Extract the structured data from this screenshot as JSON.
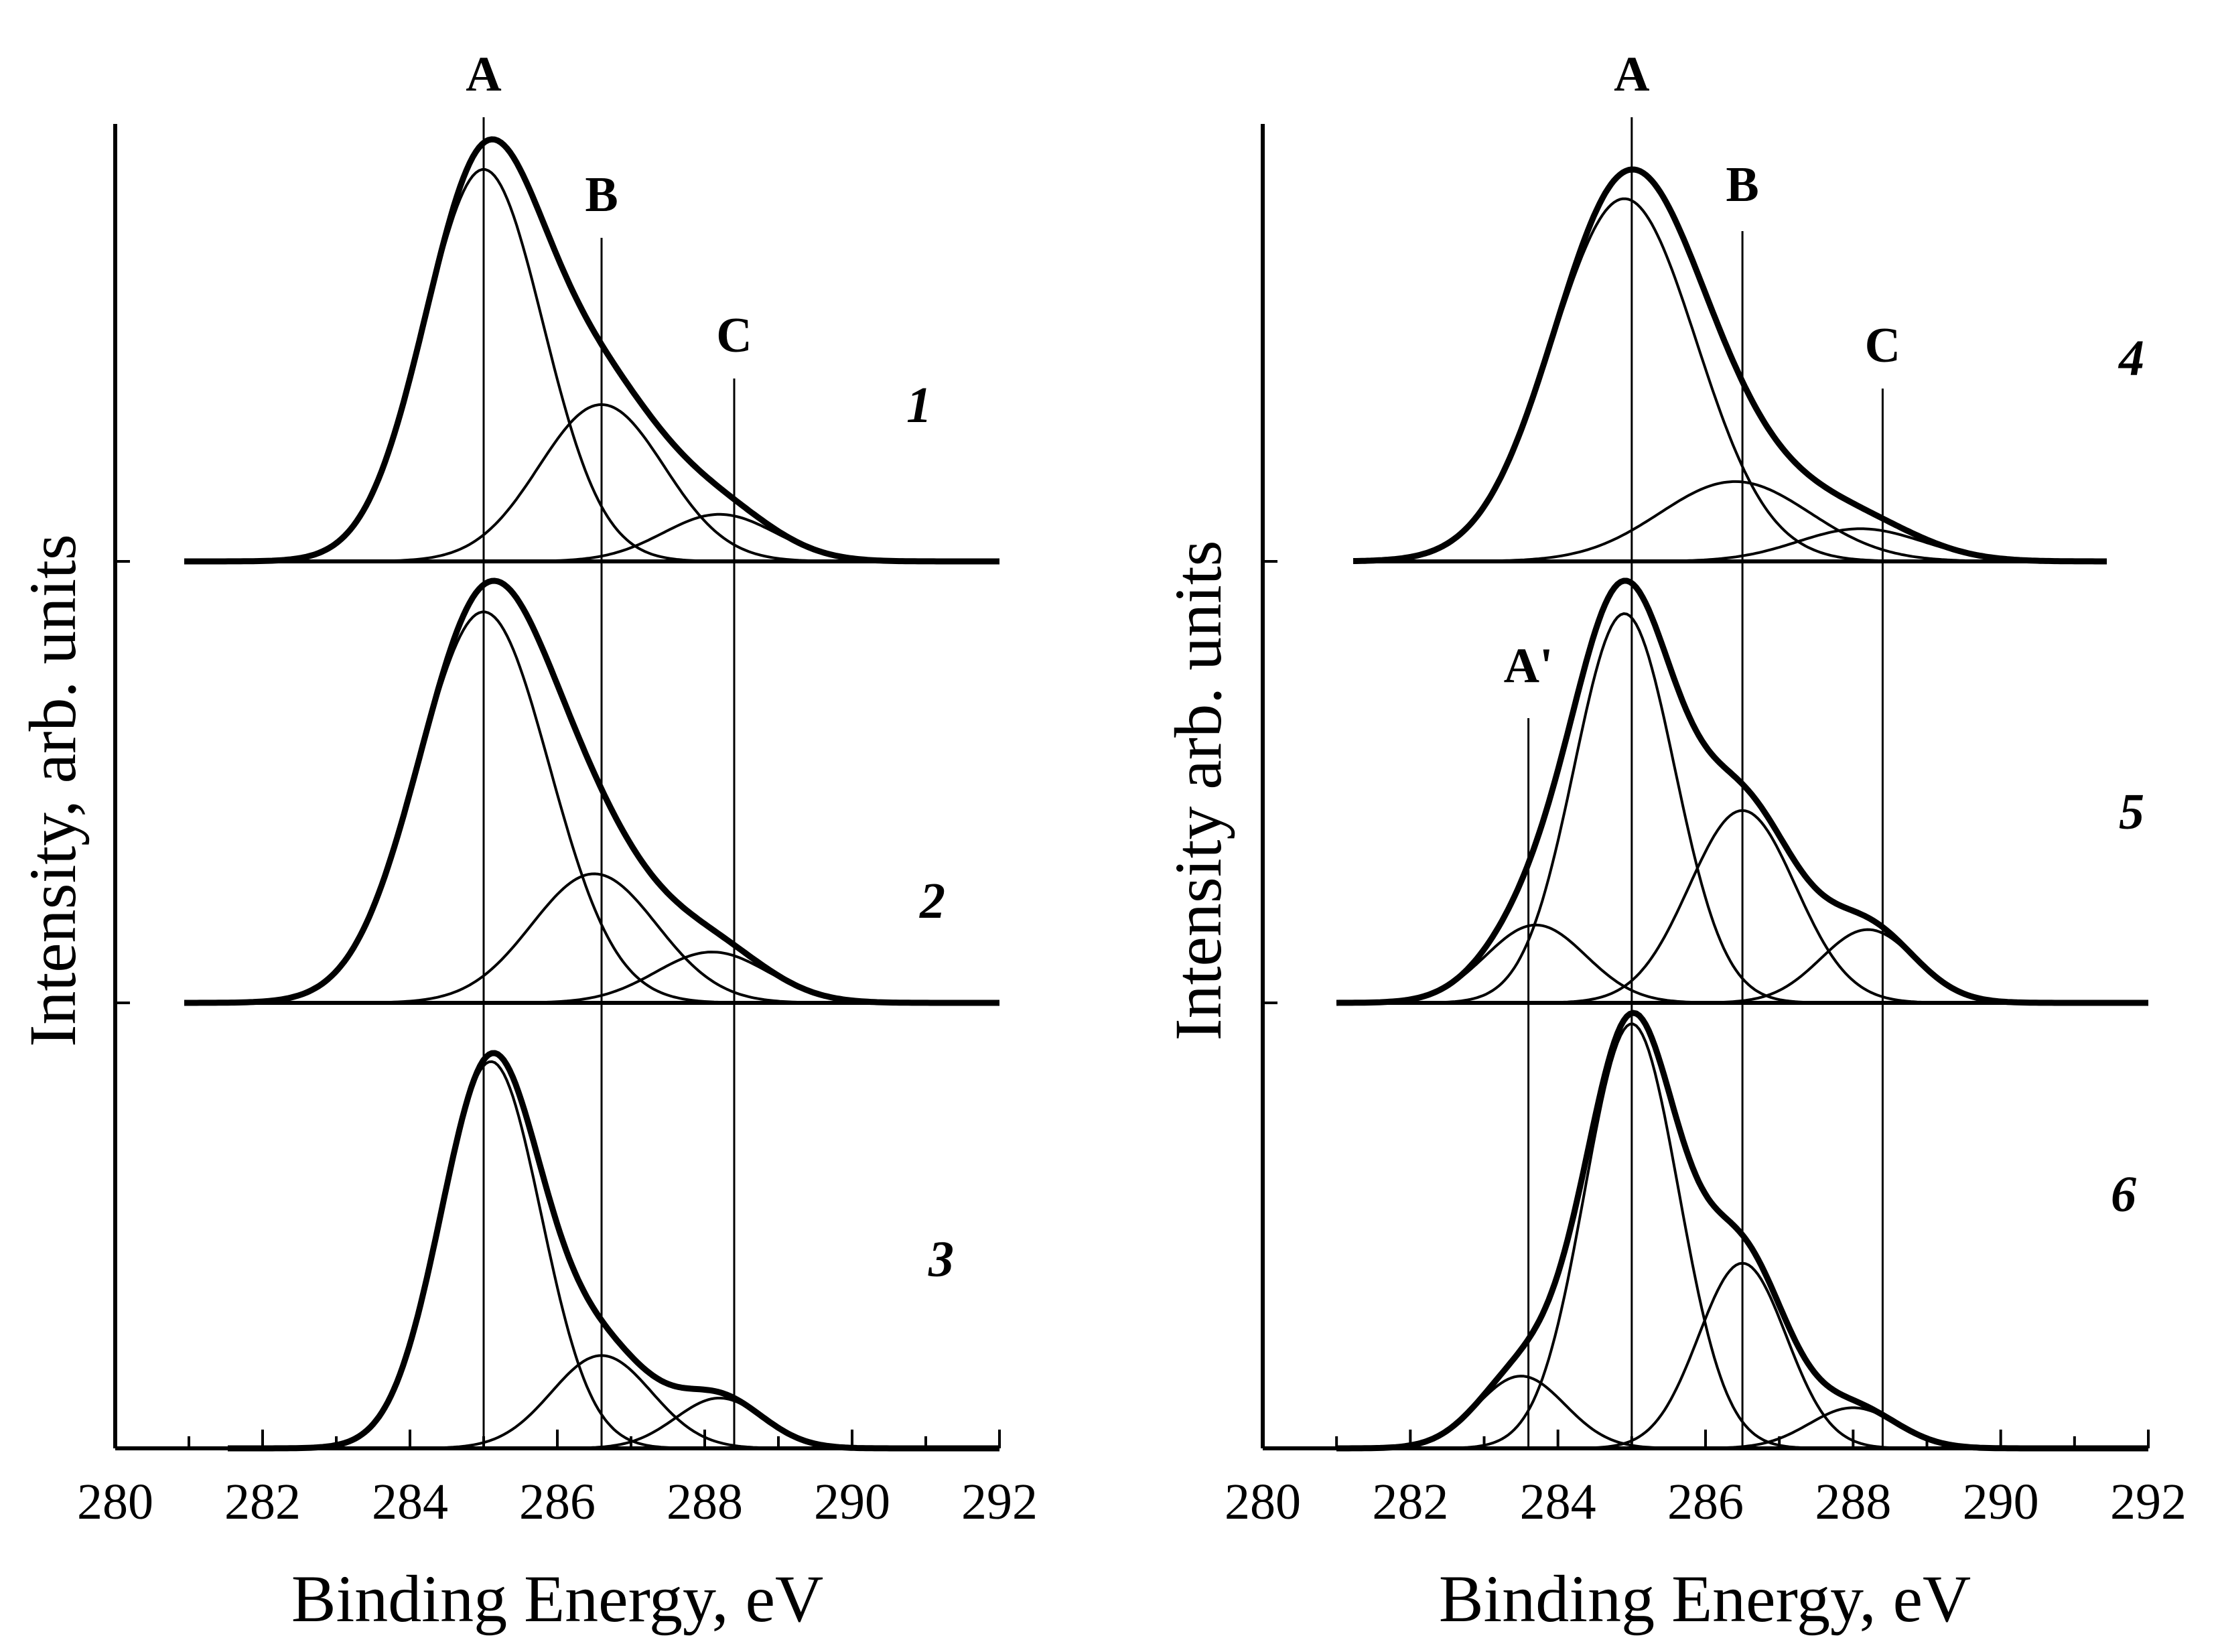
{
  "chart_data": [
    {
      "type": "line",
      "title": "",
      "xlabel": "Binding Energy, eV",
      "ylabel": "Intensity, arb. units",
      "xlim": [
        280,
        292
      ],
      "x_tick_labels": [
        "280",
        "282",
        "284",
        "286",
        "288",
        "290",
        "292"
      ],
      "peak_markers": [
        {
          "label": "A",
          "x": 285.0
        },
        {
          "label": "B",
          "x": 286.6
        },
        {
          "label": "C",
          "x": 288.4
        }
      ],
      "spectra": [
        {
          "label": "1",
          "components": [
            {
              "name": "A",
              "center": 285.0,
              "height": 1.0,
              "fwhm": 1.9
            },
            {
              "name": "B",
              "center": 286.6,
              "height": 0.4,
              "fwhm": 2.0
            },
            {
              "name": "C",
              "center": 288.2,
              "height": 0.12,
              "fwhm": 1.8
            }
          ]
        },
        {
          "label": "2",
          "components": [
            {
              "name": "A",
              "center": 285.0,
              "height": 1.0,
              "fwhm": 2.1
            },
            {
              "name": "B",
              "center": 286.5,
              "height": 0.33,
              "fwhm": 2.0
            },
            {
              "name": "C",
              "center": 288.1,
              "height": 0.13,
              "fwhm": 1.8
            }
          ]
        },
        {
          "label": "3",
          "components": [
            {
              "name": "A",
              "center": 285.1,
              "height": 1.0,
              "fwhm": 1.6
            },
            {
              "name": "B",
              "center": 286.6,
              "height": 0.24,
              "fwhm": 1.6
            },
            {
              "name": "C",
              "center": 288.2,
              "height": 0.13,
              "fwhm": 1.4
            }
          ]
        }
      ]
    },
    {
      "type": "line",
      "title": "",
      "xlabel": "Binding Energy, eV",
      "ylabel": "Intensity arb. units",
      "xlim": [
        280,
        292
      ],
      "x_tick_labels": [
        "280",
        "282",
        "284",
        "286",
        "288",
        "290",
        "292"
      ],
      "peak_markers": [
        {
          "label": "A'",
          "x": 283.6
        },
        {
          "label": "A",
          "x": 285.0
        },
        {
          "label": "B",
          "x": 286.5
        },
        {
          "label": "C",
          "x": 288.4
        }
      ],
      "spectra": [
        {
          "label": "4",
          "components": [
            {
              "name": "A",
              "center": 284.9,
              "height": 1.0,
              "fwhm": 2.3
            },
            {
              "name": "B",
              "center": 286.4,
              "height": 0.22,
              "fwhm": 2.4
            },
            {
              "name": "C",
              "center": 288.1,
              "height": 0.09,
              "fwhm": 2.0
            }
          ]
        },
        {
          "label": "5",
          "components": [
            {
              "name": "A'",
              "center": 283.7,
              "height": 0.17,
              "fwhm": 1.6
            },
            {
              "name": "A",
              "center": 284.9,
              "height": 0.85,
              "fwhm": 1.6
            },
            {
              "name": "B",
              "center": 286.5,
              "height": 0.42,
              "fwhm": 1.7
            },
            {
              "name": "C",
              "center": 288.2,
              "height": 0.16,
              "fwhm": 1.5
            }
          ]
        },
        {
          "label": "6",
          "components": [
            {
              "name": "A'",
              "center": 283.5,
              "height": 0.16,
              "fwhm": 1.4
            },
            {
              "name": "A",
              "center": 285.0,
              "height": 0.94,
              "fwhm": 1.5
            },
            {
              "name": "B",
              "center": 286.5,
              "height": 0.41,
              "fwhm": 1.4
            },
            {
              "name": "C",
              "center": 288.0,
              "height": 0.09,
              "fwhm": 1.4
            }
          ]
        }
      ]
    }
  ]
}
